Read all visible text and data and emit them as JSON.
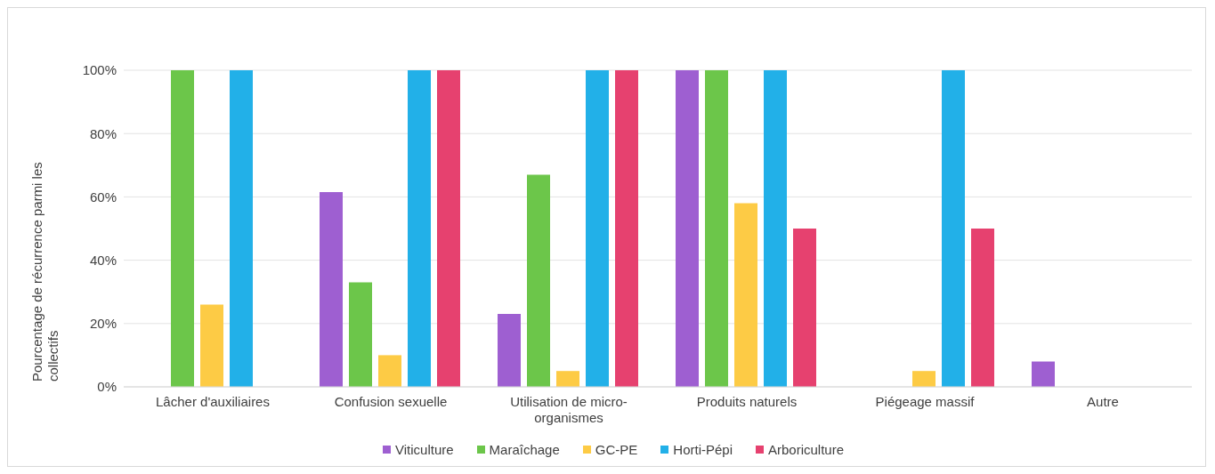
{
  "chart_data": {
    "type": "bar",
    "categories": [
      "Lâcher d'auxiliaires",
      "Confusion sexuelle",
      "Utilisation de micro-organismes",
      "Produits naturels",
      "Piégeage massif",
      "Autre"
    ],
    "series": [
      {
        "name": "Viticulture",
        "color": "#9e5fd1",
        "values": [
          0,
          61.5,
          23,
          100,
          0,
          8
        ]
      },
      {
        "name": "Maraîchage",
        "color": "#6cc64a",
        "values": [
          100,
          33,
          67,
          100,
          0,
          0
        ]
      },
      {
        "name": "GC-PE",
        "color": "#fdcb45",
        "values": [
          26,
          10,
          5,
          58,
          5,
          0
        ]
      },
      {
        "name": "Horti-Pépi",
        "color": "#22b0e8",
        "values": [
          100,
          100,
          100,
          100,
          100,
          0
        ]
      },
      {
        "name": "Arboriculture",
        "color": "#e6416f",
        "values": [
          0,
          100,
          100,
          50,
          50,
          0
        ]
      }
    ],
    "ylabel": "Pourcentage de récurrence parmi les collectifs",
    "ylim": [
      0,
      100
    ],
    "yticks": [
      {
        "value": 0,
        "label": "0%"
      },
      {
        "value": 20,
        "label": "20%"
      },
      {
        "value": 40,
        "label": "40%"
      },
      {
        "value": 60,
        "label": "60%"
      },
      {
        "value": 80,
        "label": "80%"
      },
      {
        "value": 100,
        "label": "100%"
      }
    ],
    "grid": "y",
    "legend": "bottom"
  }
}
